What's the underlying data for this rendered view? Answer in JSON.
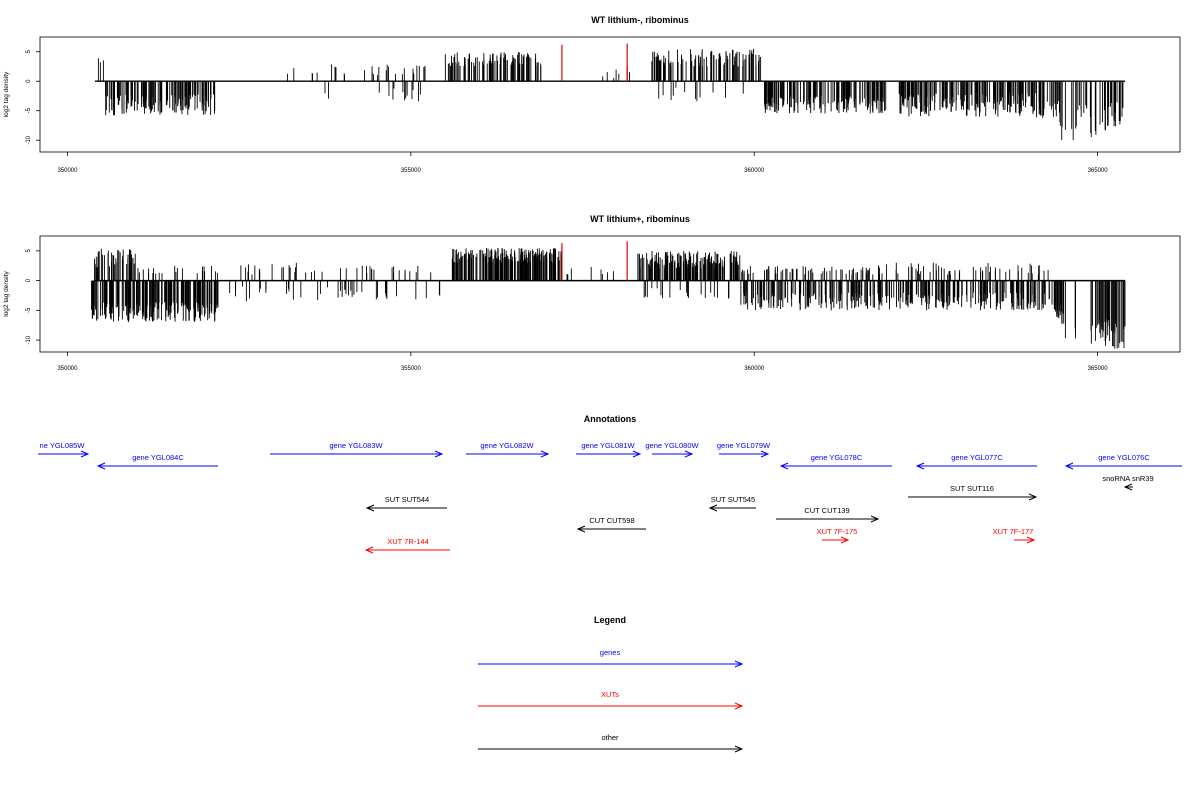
{
  "chart_data": [
    {
      "type": "bar",
      "title": "WT lithium-, ribominus",
      "ylabel": "log2 tag density",
      "xlabel": "",
      "xlim": [
        349600,
        366200
      ],
      "ylim": [
        -12,
        7.5
      ],
      "xticks": [
        350000,
        355000,
        360000,
        365000
      ],
      "yticks": [
        5,
        0,
        -5,
        -10
      ],
      "grid": false,
      "baseline": {
        "x": [
          350400,
          365400
        ]
      },
      "highlight": [
        {
          "x": 357200,
          "y": 6.2
        },
        {
          "x": 358150,
          "y": 6.4
        },
        {
          "x": 358150,
          "y": 2.5
        }
      ],
      "regions": [
        {
          "from": 350450,
          "to": 350550,
          "min": 3.0,
          "max": 4.0,
          "n": 3
        },
        {
          "from": 350550,
          "to": 352150,
          "min": -5.8,
          "max": -2.2,
          "n": 140
        },
        {
          "from": 353200,
          "to": 355300,
          "min": 1.0,
          "max": 3.0,
          "n": 30
        },
        {
          "from": 353300,
          "to": 355300,
          "min": -3.5,
          "max": -1.0,
          "n": 14
        },
        {
          "from": 355500,
          "to": 356900,
          "min": 2.5,
          "max": 5.0,
          "n": 95
        },
        {
          "from": 357000,
          "to": 358400,
          "min": 0.5,
          "max": 2.0,
          "n": 6
        },
        {
          "from": 358500,
          "to": 360100,
          "min": 2.5,
          "max": 5.5,
          "n": 100
        },
        {
          "from": 358600,
          "to": 360000,
          "min": -3.5,
          "max": -1.0,
          "n": 12
        },
        {
          "from": 360150,
          "to": 361950,
          "min": -5.5,
          "max": -2.5,
          "n": 150
        },
        {
          "from": 362100,
          "to": 364100,
          "min": -6.0,
          "max": -2.0,
          "n": 180
        },
        {
          "from": 364100,
          "to": 364450,
          "min": -6.5,
          "max": -3.0,
          "n": 25
        },
        {
          "from": 364450,
          "to": 364550,
          "min": -10.0,
          "max": -6.0,
          "n": 5
        },
        {
          "from": 364600,
          "to": 364700,
          "min": -10.5,
          "max": -7.0,
          "n": 4
        },
        {
          "from": 364700,
          "to": 364900,
          "min": -7.0,
          "max": -4.0,
          "n": 10
        },
        {
          "from": 364900,
          "to": 364980,
          "min": -10.0,
          "max": -7.5,
          "n": 4
        },
        {
          "from": 365000,
          "to": 365400,
          "min": -8.5,
          "max": -3.5,
          "n": 30
        }
      ]
    },
    {
      "type": "bar",
      "title": "WT lithium+, ribominus",
      "ylabel": "log2 tag density",
      "xlabel": "",
      "xlim": [
        349600,
        366200
      ],
      "ylim": [
        -12,
        7.5
      ],
      "xticks": [
        350000,
        355000,
        360000,
        365000
      ],
      "yticks": [
        5,
        0,
        -5,
        -10
      ],
      "grid": false,
      "baseline": {
        "x": [
          350400,
          365400
        ]
      },
      "highlight": [
        {
          "x": 357200,
          "y": 6.3
        },
        {
          "x": 358150,
          "y": 6.6
        }
      ],
      "regions": [
        {
          "from": 350350,
          "to": 351000,
          "min": 2.0,
          "max": 5.5,
          "n": 45
        },
        {
          "from": 350350,
          "to": 352200,
          "min": -7.0,
          "max": -3.5,
          "n": 200
        },
        {
          "from": 351000,
          "to": 352200,
          "min": 1.0,
          "max": 2.5,
          "n": 22
        },
        {
          "from": 352300,
          "to": 355500,
          "min": -3.5,
          "max": -1.0,
          "n": 40
        },
        {
          "from": 352500,
          "to": 355300,
          "min": 1.0,
          "max": 3.0,
          "n": 40
        },
        {
          "from": 355600,
          "to": 357200,
          "min": 3.0,
          "max": 5.5,
          "n": 200
        },
        {
          "from": 357200,
          "to": 358000,
          "min": 1.0,
          "max": 2.5,
          "n": 8
        },
        {
          "from": 358300,
          "to": 359800,
          "min": 2.0,
          "max": 5.0,
          "n": 160
        },
        {
          "from": 358300,
          "to": 359800,
          "min": -3.0,
          "max": -1.0,
          "n": 20
        },
        {
          "from": 359800,
          "to": 361800,
          "min": 1.0,
          "max": 2.5,
          "n": 60
        },
        {
          "from": 359800,
          "to": 364300,
          "min": -5.0,
          "max": -2.0,
          "n": 300
        },
        {
          "from": 361800,
          "to": 364300,
          "min": 1.0,
          "max": 3.0,
          "n": 60
        },
        {
          "from": 364300,
          "to": 364500,
          "min": -7.0,
          "max": -4.0,
          "n": 20
        },
        {
          "from": 364450,
          "to": 364550,
          "min": -10.0,
          "max": -7.0,
          "n": 5
        },
        {
          "from": 364650,
          "to": 364750,
          "min": -10.5,
          "max": -7.5,
          "n": 4
        },
        {
          "from": 364900,
          "to": 365000,
          "min": -11.0,
          "max": -7.5,
          "n": 5
        },
        {
          "from": 365000,
          "to": 365400,
          "min": -11.5,
          "max": -6.0,
          "n": 40
        }
      ]
    }
  ],
  "annotations": {
    "title": "Annotations",
    "colors": {
      "gene": "#0000ff",
      "xut": "#ff0000",
      "other": "#000000"
    },
    "items": [
      {
        "label": "ne YGL085W",
        "kind": "gene",
        "row": 0,
        "dir": "right"
      },
      {
        "label": "gene YGL084C",
        "kind": "gene",
        "row": 1,
        "dir": "left"
      },
      {
        "label": "gene YGL083W",
        "kind": "gene",
        "row": 0,
        "dir": "right"
      },
      {
        "label": "gene YGL082W",
        "kind": "gene",
        "row": 0,
        "dir": "right"
      },
      {
        "label": "gene YGL081W",
        "kind": "gene",
        "row": 0,
        "dir": "right"
      },
      {
        "label": "gene YGL080W",
        "kind": "gene",
        "row": 0,
        "dir": "right"
      },
      {
        "label": "gene YGL079W",
        "kind": "gene",
        "row": 0,
        "dir": "right"
      },
      {
        "label": "gene YGL078C",
        "kind": "gene",
        "row": 1,
        "dir": "left"
      },
      {
        "label": "gene YGL077C",
        "kind": "gene",
        "row": 1,
        "dir": "left"
      },
      {
        "label": "gene YGL076C",
        "kind": "gene",
        "row": 1,
        "dir": "left"
      },
      {
        "label": "snoRNA snR39",
        "kind": "other",
        "row": 2,
        "dir": "left"
      },
      {
        "label": "SUT SUT544",
        "kind": "other",
        "row": 4,
        "dir": "left"
      },
      {
        "label": "SUT SUT545",
        "kind": "other",
        "row": 4,
        "dir": "left"
      },
      {
        "label": "SUT SUT116",
        "kind": "other",
        "row": 3,
        "dir": "right"
      },
      {
        "label": "CUT CUT139",
        "kind": "other",
        "row": 5,
        "dir": "right"
      },
      {
        "label": "CUT CUT598",
        "kind": "other",
        "row": 6,
        "dir": "left"
      },
      {
        "label": "XUT 7F-175",
        "kind": "xut",
        "row": 7,
        "dir": "right"
      },
      {
        "label": "XUT 7F-177",
        "kind": "xut",
        "row": 7,
        "dir": "right"
      },
      {
        "label": "XUT 7R-144",
        "kind": "xut",
        "row": 8,
        "dir": "left"
      }
    ]
  },
  "legend": {
    "title": "Legend",
    "entries": [
      {
        "label": "genes",
        "kind": "gene"
      },
      {
        "label": "XUTs",
        "kind": "xut"
      },
      {
        "label": "other",
        "kind": "other"
      }
    ]
  }
}
